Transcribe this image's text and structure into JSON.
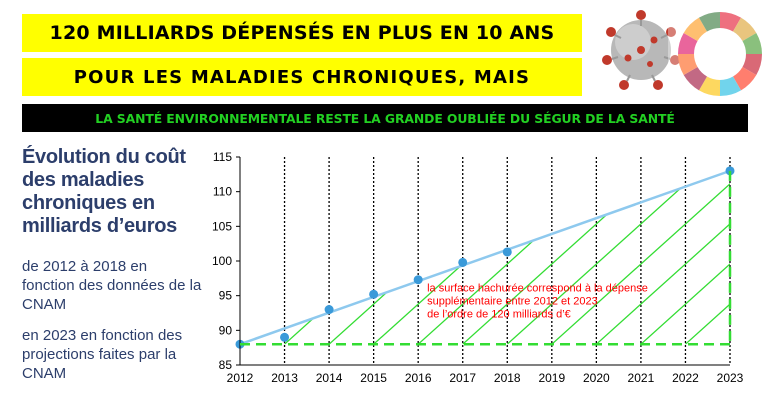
{
  "banners": {
    "line1": "120 MILLIARDS DÉPENSÉS EN PLUS EN 10 ANS",
    "line2": "POUR LES MALADIES CHRONIQUES, MAIS",
    "line3": "LA SANTÉ ENVIRONNEMENTALE RESTE LA GRANDE OUBLIÉE DU SÉGUR DE LA SANTÉ"
  },
  "sidebar": {
    "title": "Évolution du coût des maladies chroniques en milliards d’euros",
    "note1": "de 2012 à 2018 en fonction des données de la CNAM",
    "note2": "en 2023 en fonction des projections faites par la CNAM"
  },
  "colors": {
    "banner_bg": "#ffff00",
    "strip_bg": "#000000",
    "strip_text": "#22d022",
    "title_text": "#2c3e6b",
    "trend_line": "#8ec9ee",
    "points": "#3a9ad9",
    "hatch": "#33dd33",
    "annotation": "#ff0000"
  },
  "icons": {
    "virus": "coronavirus-icon",
    "sdg": "sdg-wheel-logo"
  },
  "chart_data": {
    "type": "scatter",
    "x": [
      2012,
      2013,
      2014,
      2015,
      2016,
      2017,
      2018,
      2023
    ],
    "y": [
      88,
      89,
      93,
      95.2,
      97.3,
      99.8,
      101.3,
      113
    ],
    "trend": {
      "x": [
        2012,
        2023
      ],
      "y": [
        88,
        113
      ]
    },
    "baseline": 88,
    "xlim": [
      2012,
      2023
    ],
    "ylim": [
      85,
      115
    ],
    "xticks": [
      "2012",
      "2013",
      "2014",
      "2015",
      "2016",
      "2017",
      "2018",
      "2019",
      "2020",
      "2021",
      "2022",
      "2023"
    ],
    "yticks": [
      "85",
      "90",
      "95",
      "100",
      "105",
      "110",
      "115"
    ],
    "grid": "vertical dotted",
    "annotation": "la surface hachurée correspond à la dépense supplémentaire entre 2012 et 2023 de l’ordre de 120 milliards d’€",
    "annotation_lines": [
      "la surface hachurée correspond à la dépense",
      "supplémentaire entre 2012 et 2023",
      "de l’ordre de 120 milliards d’€"
    ]
  }
}
